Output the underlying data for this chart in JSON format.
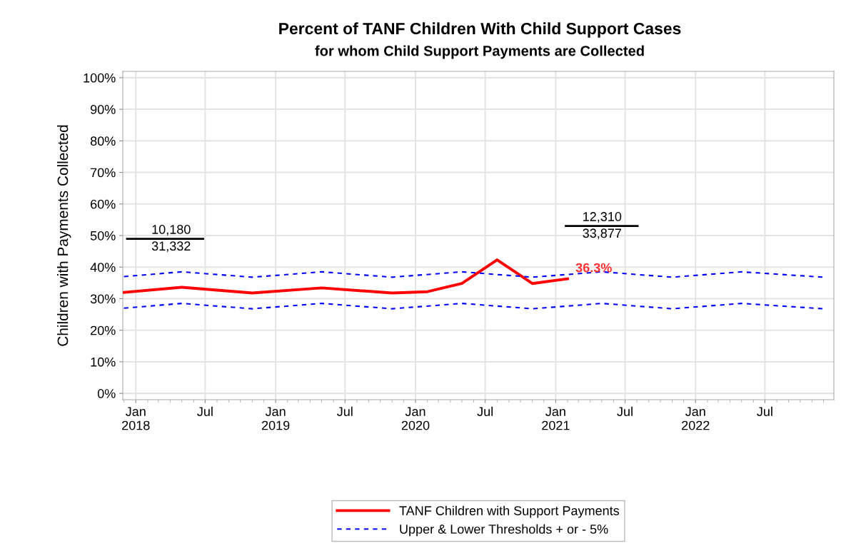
{
  "chart_data": {
    "type": "line",
    "title": "Percent of TANF Children With Child Support Cases",
    "subtitle": "for whom Child Support Payments are Collected",
    "ylabel": "Children with Payments Collected",
    "series": [
      {
        "name": "TANF Children with Support Payments",
        "color": "#ff0000",
        "line_style": "solid",
        "x": [
          "2017-12",
          "2018-05",
          "2018-11",
          "2019-05",
          "2019-11",
          "2020-02",
          "2020-05",
          "2020-08",
          "2020-11",
          "2021-02"
        ],
        "values": [
          32.0,
          33.6,
          31.8,
          33.4,
          31.8,
          32.2,
          34.8,
          42.3,
          34.8,
          36.3
        ]
      },
      {
        "name": "Upper & Lower Thresholds + or - 5%",
        "color": "#0000ff",
        "line_style": "dashed",
        "x": [
          "2017-12",
          "2018-05",
          "2018-11",
          "2019-05",
          "2019-11",
          "2020-05",
          "2020-11",
          "2021-05",
          "2021-11",
          "2022-05",
          "2022-12"
        ],
        "values": [
          37.0,
          38.5,
          36.8,
          38.5,
          36.8,
          38.5,
          36.8,
          38.5,
          36.8,
          38.5,
          36.8
        ]
      },
      {
        "color": "#0000ff",
        "line_style": "dashed",
        "x": [
          "2017-12",
          "2018-05",
          "2018-11",
          "2019-05",
          "2019-11",
          "2020-05",
          "2020-11",
          "2021-05",
          "2021-11",
          "2022-05",
          "2022-12"
        ],
        "values": [
          27.0,
          28.5,
          26.8,
          28.5,
          26.8,
          28.5,
          26.8,
          28.5,
          26.8,
          28.5,
          26.8
        ]
      }
    ],
    "xlim": [
      "2017-11-28",
      "2022-12-28"
    ],
    "xticks": [
      {
        "value": "2018-01-01",
        "label": "Jan\n2018"
      },
      {
        "value": "2018-07-01",
        "label": "Jul"
      },
      {
        "value": "2019-01-01",
        "label": "Jan\n2019"
      },
      {
        "value": "2019-07-01",
        "label": "Jul"
      },
      {
        "value": "2020-01-01",
        "label": "Jan\n2020"
      },
      {
        "value": "2020-07-01",
        "label": "Jul"
      },
      {
        "value": "2021-01-01",
        "label": "Jan\n2021"
      },
      {
        "value": "2021-07-01",
        "label": "Jul"
      },
      {
        "value": "2022-01-01",
        "label": "Jan\n2022"
      },
      {
        "value": "2022-07-01",
        "label": "Jul"
      }
    ],
    "ylim": [
      -2,
      102
    ],
    "yticks": [
      {
        "value": 0,
        "label": "0%"
      },
      {
        "value": 10,
        "label": "10%"
      },
      {
        "value": 20,
        "label": "20%"
      },
      {
        "value": 30,
        "label": "30%"
      },
      {
        "value": 40,
        "label": "40%"
      },
      {
        "value": 50,
        "label": "50%"
      },
      {
        "value": 60,
        "label": "60%"
      },
      {
        "value": 70,
        "label": "70%"
      },
      {
        "value": 80,
        "label": "80%"
      },
      {
        "value": 90,
        "label": "90%"
      },
      {
        "value": 100,
        "label": "100%"
      }
    ],
    "grid": true,
    "legend": "bottom",
    "annotations": [
      "10,180",
      "31,332",
      "12,310",
      "33,877",
      {
        "text": "36.3%",
        "x": "2021-02",
        "y": 36.3
      }
    ]
  }
}
